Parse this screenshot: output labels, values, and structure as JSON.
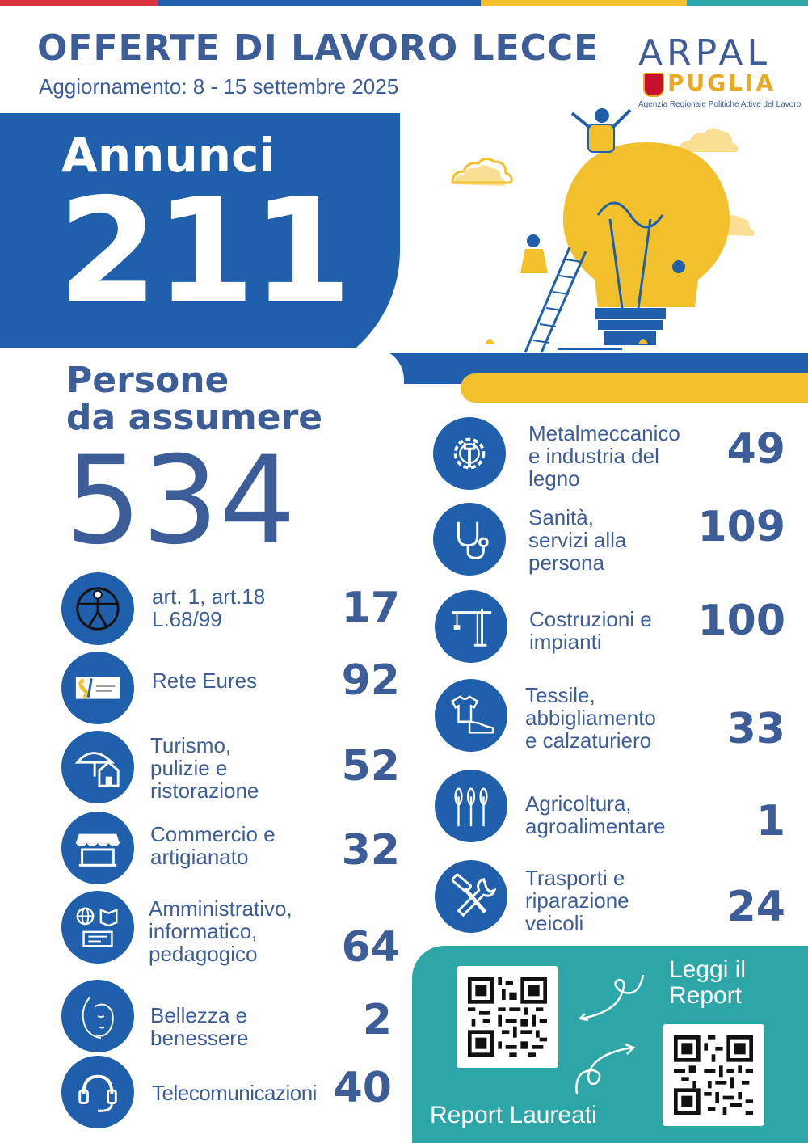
{
  "header": {
    "title": "OFFERTE DI LAVORO LECCE",
    "subtitle": "Aggiornamento: 8 - 15 settembre 2025"
  },
  "logo": {
    "arpal": "ARPAL",
    "puglia": "PUGLIA",
    "agenzia": "Agenzia Regionale Politiche Attive del Lavoro"
  },
  "annunci": {
    "label": "Annunci",
    "value": "211"
  },
  "persone": {
    "label_line1": "Persone",
    "label_line2": "da assumere",
    "value": "534"
  },
  "categories_left": [
    {
      "icon": "accessibility-icon",
      "label": "art. 1, art.18\nL.68/99",
      "value": "17"
    },
    {
      "icon": "eures-logo-icon",
      "label": "Rete Eures",
      "value": "92"
    },
    {
      "icon": "umbrella-house-icon",
      "label": "Turismo,\npulizie e\nristorazione",
      "value": "52"
    },
    {
      "icon": "market-stall-icon",
      "label": "Commercio e\nartigianato",
      "value": "32"
    },
    {
      "icon": "globe-book-id-icon",
      "label": "Amministrativo,\ninformatico,\npedagogico",
      "value": "64"
    },
    {
      "icon": "woman-face-icon",
      "label": "Bellezza e\nbenessere",
      "value": "2"
    },
    {
      "icon": "headset-icon",
      "label": "Telecomunicazioni",
      "value": "40"
    }
  ],
  "categories_right": [
    {
      "icon": "gear-wrench-icon",
      "label": "Metalmeccanico\ne industria del\nlegno",
      "value": "49"
    },
    {
      "icon": "stethoscope-icon",
      "label": "Sanità,\nservizi alla\npersona",
      "value": "109"
    },
    {
      "icon": "crane-icon",
      "label": "Costruzioni e\nimpianti",
      "value": "100"
    },
    {
      "icon": "tshirt-shoe-icon",
      "label": "Tessile,\nabbigliamento\ne calzaturiero",
      "value": "33"
    },
    {
      "icon": "wheat-icon",
      "label": "Agricoltura,\nagroalimentare",
      "value": "1"
    },
    {
      "icon": "hammer-wrench-icon",
      "label": "Trasporti e\nriparazione\nveicoli",
      "value": "24"
    }
  ],
  "report": {
    "leggi": "Leggi il\nReport",
    "laureati": "Report Laureati"
  },
  "colors": {
    "blue": "#1f5fac",
    "navy_text": "#3d5d99",
    "yellow": "#f2c02a",
    "teal": "#2da6a8",
    "red": "#d9333b"
  }
}
